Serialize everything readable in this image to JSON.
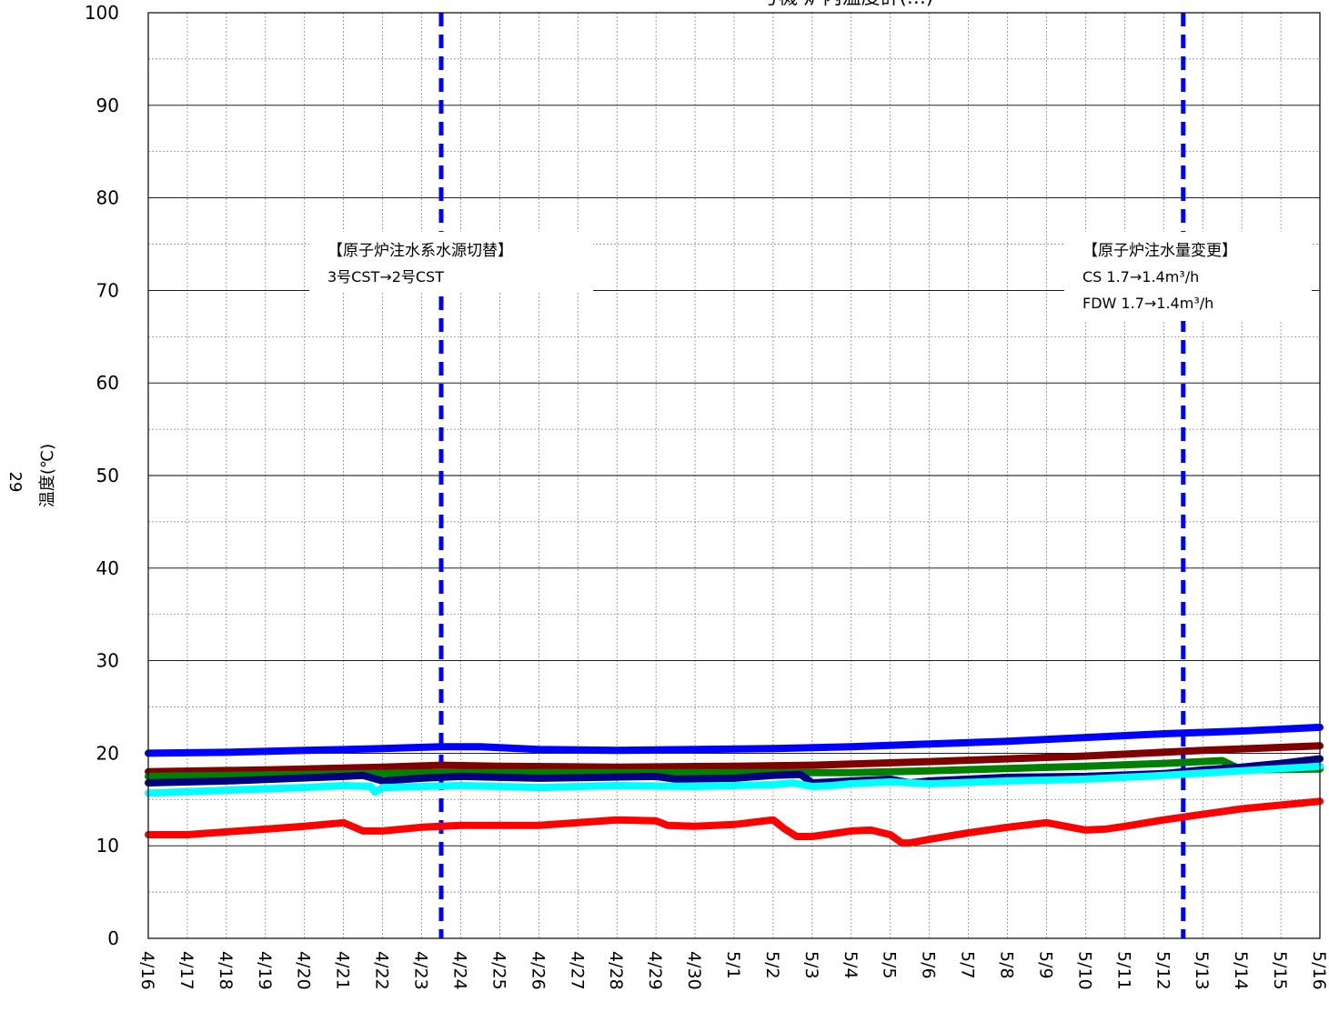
{
  "page_number": "29",
  "chart_data": {
    "type": "line",
    "title": "号機 炉内温度計(…)",
    "xlabel": "",
    "ylabel": "温度(℃)",
    "ylim": [
      0,
      100
    ],
    "yticks": [
      0,
      10,
      20,
      30,
      40,
      50,
      60,
      70,
      80,
      90,
      100
    ],
    "grid": true,
    "x_start_day": 0,
    "x_end_day": 30,
    "x_tick_labels": [
      "4/16",
      "4/17",
      "4/18",
      "4/19",
      "4/20",
      "4/21",
      "4/22",
      "4/23",
      "4/24",
      "4/25",
      "4/26",
      "4/27",
      "4/28",
      "4/29",
      "4/30",
      "5/1",
      "5/2",
      "5/3",
      "5/4",
      "5/5",
      "5/6",
      "5/7",
      "5/8",
      "5/9",
      "5/10",
      "5/11",
      "5/12",
      "5/13",
      "5/14",
      "5/15",
      "5/16"
    ],
    "annotations": [
      {
        "day": 7.5,
        "lines": [
          "【原子炉注水系水源切替】",
          "3号CST→2号CST"
        ]
      },
      {
        "day": 26.5,
        "lines": [
          "【原子炉注水量変更】",
          "CS 1.7→1.4m³/h",
          "FDW 1.7→1.4m³/h"
        ]
      }
    ],
    "series": [
      {
        "color": "#0000ff",
        "x": [
          0,
          2,
          4,
          6,
          7.5,
          8.5,
          10,
          12,
          14,
          16,
          18,
          20,
          22,
          24,
          26,
          28,
          30
        ],
        "y": [
          20.0,
          20.1,
          20.3,
          20.5,
          20.7,
          20.7,
          20.4,
          20.3,
          20.4,
          20.5,
          20.7,
          21.0,
          21.3,
          21.7,
          22.1,
          22.4,
          22.8
        ]
      },
      {
        "color": "#800000",
        "x": [
          0,
          3,
          6,
          7.5,
          9,
          12,
          15,
          17,
          20,
          24,
          27,
          30
        ],
        "y": [
          18.0,
          18.2,
          18.5,
          18.7,
          18.6,
          18.5,
          18.6,
          18.7,
          19.1,
          19.7,
          20.3,
          20.8
        ]
      },
      {
        "color": "#008000",
        "x": [
          0,
          4,
          7.5,
          10,
          15,
          18,
          20,
          24,
          26,
          27.5,
          28,
          30
        ],
        "y": [
          17.5,
          17.7,
          17.9,
          17.9,
          17.9,
          17.9,
          18.1,
          18.6,
          18.9,
          19.2,
          18.2,
          18.3
        ]
      },
      {
        "color": "#000080",
        "x": [
          0,
          2,
          5,
          5.5,
          6,
          7,
          8,
          10,
          13,
          13.5,
          15,
          16,
          16.7,
          17,
          18,
          19,
          19.5,
          20,
          22,
          24,
          26,
          27,
          28,
          29,
          30
        ],
        "y": [
          16.8,
          17.0,
          17.5,
          17.6,
          17.0,
          17.3,
          17.5,
          17.3,
          17.5,
          17.2,
          17.3,
          17.6,
          17.7,
          16.8,
          17.0,
          17.2,
          16.8,
          17.0,
          17.4,
          17.5,
          17.8,
          18.2,
          18.5,
          18.9,
          19.4
        ]
      },
      {
        "color": "#00ffff",
        "x": [
          0,
          2,
          4,
          5,
          5.7,
          5.8,
          6,
          8,
          10,
          12,
          14,
          16,
          16.5,
          17,
          17.5,
          18,
          19,
          20,
          22,
          24,
          26,
          28,
          30
        ],
        "y": [
          15.7,
          16.0,
          16.3,
          16.5,
          16.4,
          15.8,
          16.3,
          16.5,
          16.3,
          16.5,
          16.4,
          16.6,
          16.8,
          16.4,
          16.5,
          16.7,
          16.9,
          16.7,
          17.0,
          17.2,
          17.6,
          18.1,
          18.6
        ]
      },
      {
        "color": "#ff0000",
        "x": [
          0,
          1,
          2,
          3,
          4,
          5,
          5.5,
          6,
          7,
          8,
          10,
          11,
          12,
          13,
          13.3,
          14,
          15,
          16,
          16.3,
          16.6,
          17,
          17.5,
          18,
          18.5,
          19,
          19.3,
          19.5,
          20,
          21,
          22,
          23,
          24,
          24.5,
          25,
          26,
          27,
          28,
          29,
          30
        ],
        "y": [
          11.2,
          11.2,
          11.5,
          11.8,
          12.1,
          12.5,
          11.6,
          11.6,
          12.0,
          12.2,
          12.2,
          12.5,
          12.8,
          12.7,
          12.2,
          12.1,
          12.3,
          12.8,
          11.8,
          11.0,
          11.0,
          11.3,
          11.6,
          11.7,
          11.2,
          10.3,
          10.3,
          10.7,
          11.4,
          12.0,
          12.5,
          11.7,
          11.8,
          12.1,
          12.8,
          13.4,
          14.0,
          14.4,
          14.8
        ]
      }
    ]
  }
}
